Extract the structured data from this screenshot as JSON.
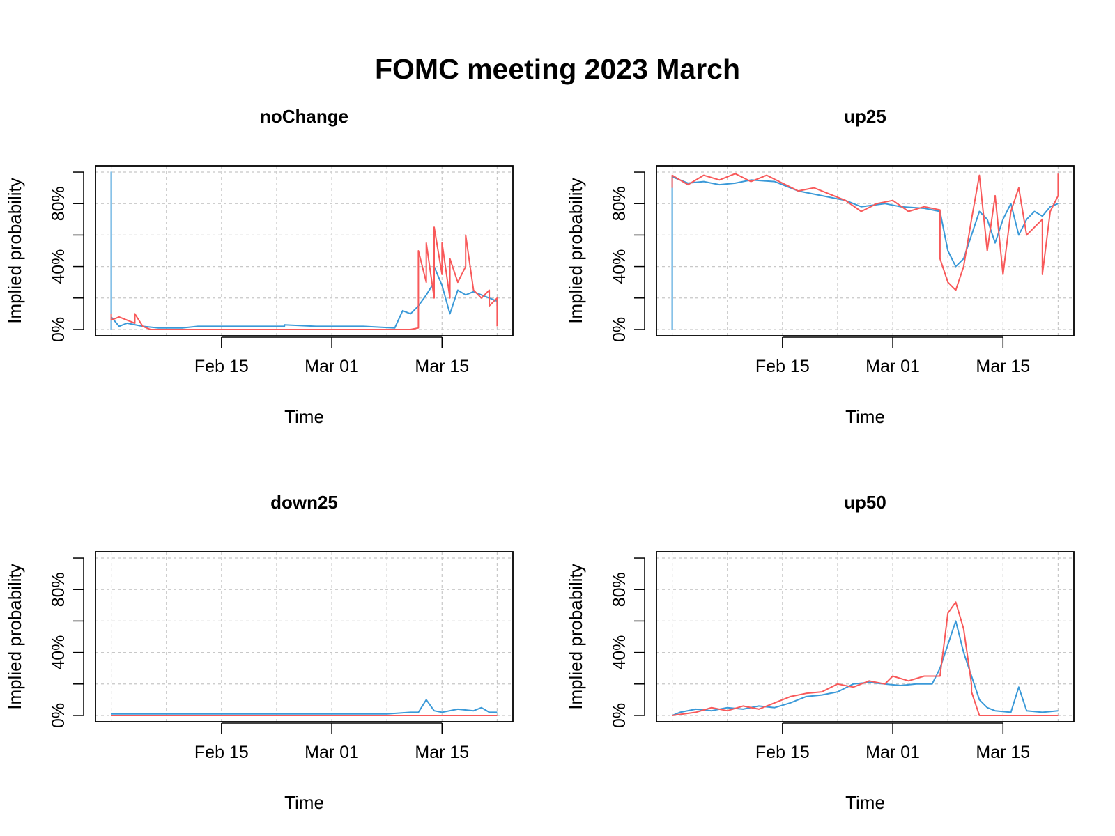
{
  "figure": {
    "title": "FOMC meeting 2023 March"
  },
  "colors": {
    "series_a": "#3a99d8",
    "series_b": "#f8595a",
    "grid": "#c8c8c8",
    "frame": "#000000"
  },
  "chart_data": [
    {
      "type": "line",
      "title": "noChange",
      "xlabel": "Time",
      "ylabel": "Implied probability",
      "x_type": "date",
      "xlim": [
        "2023-01-30",
        "2023-03-24"
      ],
      "ylim": [
        -0.04,
        1.04
      ],
      "x_tick_labels": [
        "Feb 15",
        "Mar 01",
        "Mar 15"
      ],
      "x_ticks": [
        "2023-02-15",
        "2023-03-01",
        "2023-03-15"
      ],
      "y_tick_labels": [
        "0%",
        "40%",
        "80%"
      ],
      "y_ticks": [
        0,
        0.2,
        0.4,
        0.6,
        0.8,
        1.0
      ],
      "grid": true,
      "series": [
        {
          "color": "#3a99d8",
          "points": [
            [
              "2023-02-01",
              0.0
            ],
            [
              "2023-02-01",
              1.0
            ],
            [
              "2023-02-01",
              0.08
            ],
            [
              "2023-02-02",
              0.02
            ],
            [
              "2023-02-03",
              0.04
            ],
            [
              "2023-02-05",
              0.02
            ],
            [
              "2023-02-07",
              0.01
            ],
            [
              "2023-02-10",
              0.01
            ],
            [
              "2023-02-12",
              0.02
            ],
            [
              "2023-02-20",
              0.02
            ],
            [
              "2023-02-23",
              0.02
            ],
            [
              "2023-02-23",
              0.03
            ],
            [
              "2023-02-27",
              0.02
            ],
            [
              "2023-03-05",
              0.02
            ],
            [
              "2023-03-09",
              0.01
            ],
            [
              "2023-03-10",
              0.12
            ],
            [
              "2023-03-11",
              0.1
            ],
            [
              "2023-03-12",
              0.15
            ],
            [
              "2023-03-13",
              0.22
            ],
            [
              "2023-03-14",
              0.3
            ],
            [
              "2023-03-14",
              0.4
            ],
            [
              "2023-03-15",
              0.28
            ],
            [
              "2023-03-16",
              0.1
            ],
            [
              "2023-03-17",
              0.25
            ],
            [
              "2023-03-18",
              0.22
            ],
            [
              "2023-03-19",
              0.24
            ],
            [
              "2023-03-20",
              0.22
            ],
            [
              "2023-03-21",
              0.2
            ],
            [
              "2023-03-22",
              0.18
            ],
            [
              "2023-03-22",
              0.15
            ]
          ]
        },
        {
          "color": "#f8595a",
          "points": [
            [
              "2023-02-01",
              0.1
            ],
            [
              "2023-02-01",
              0.06
            ],
            [
              "2023-02-02",
              0.08
            ],
            [
              "2023-02-04",
              0.04
            ],
            [
              "2023-02-04",
              0.1
            ],
            [
              "2023-02-05",
              0.02
            ],
            [
              "2023-02-06",
              0.0
            ],
            [
              "2023-02-20",
              0.0
            ],
            [
              "2023-03-11",
              0.0
            ],
            [
              "2023-03-12",
              0.01
            ],
            [
              "2023-03-12",
              0.4
            ],
            [
              "2023-03-12",
              0.5
            ],
            [
              "2023-03-13",
              0.3
            ],
            [
              "2023-03-13",
              0.55
            ],
            [
              "2023-03-14",
              0.2
            ],
            [
              "2023-03-14",
              0.65
            ],
            [
              "2023-03-15",
              0.35
            ],
            [
              "2023-03-15",
              0.55
            ],
            [
              "2023-03-16",
              0.2
            ],
            [
              "2023-03-16",
              0.45
            ],
            [
              "2023-03-17",
              0.3
            ],
            [
              "2023-03-18",
              0.4
            ],
            [
              "2023-03-18",
              0.6
            ],
            [
              "2023-03-19",
              0.25
            ],
            [
              "2023-03-20",
              0.2
            ],
            [
              "2023-03-21",
              0.25
            ],
            [
              "2023-03-21",
              0.15
            ],
            [
              "2023-03-22",
              0.2
            ],
            [
              "2023-03-22",
              0.02
            ]
          ]
        }
      ]
    },
    {
      "type": "line",
      "title": "up25",
      "xlabel": "Time",
      "ylabel": "Implied probability",
      "x_type": "date",
      "xlim": [
        "2023-01-30",
        "2023-03-24"
      ],
      "ylim": [
        -0.04,
        1.04
      ],
      "x_tick_labels": [
        "Feb 15",
        "Mar 01",
        "Mar 15"
      ],
      "x_ticks": [
        "2023-02-15",
        "2023-03-01",
        "2023-03-15"
      ],
      "y_tick_labels": [
        "0%",
        "40%",
        "80%"
      ],
      "y_ticks": [
        0,
        0.2,
        0.4,
        0.6,
        0.8,
        1.0
      ],
      "grid": true,
      "series": [
        {
          "color": "#3a99d8",
          "points": [
            [
              "2023-02-01",
              0.0
            ],
            [
              "2023-02-01",
              0.97
            ],
            [
              "2023-02-02",
              0.95
            ],
            [
              "2023-02-03",
              0.93
            ],
            [
              "2023-02-05",
              0.94
            ],
            [
              "2023-02-07",
              0.92
            ],
            [
              "2023-02-09",
              0.93
            ],
            [
              "2023-02-11",
              0.95
            ],
            [
              "2023-02-14",
              0.94
            ],
            [
              "2023-02-17",
              0.88
            ],
            [
              "2023-02-20",
              0.85
            ],
            [
              "2023-02-23",
              0.82
            ],
            [
              "2023-02-25",
              0.78
            ],
            [
              "2023-02-28",
              0.8
            ],
            [
              "2023-03-02",
              0.78
            ],
            [
              "2023-03-05",
              0.77
            ],
            [
              "2023-03-07",
              0.75
            ],
            [
              "2023-03-08",
              0.5
            ],
            [
              "2023-03-09",
              0.4
            ],
            [
              "2023-03-10",
              0.45
            ],
            [
              "2023-03-11",
              0.6
            ],
            [
              "2023-03-12",
              0.75
            ],
            [
              "2023-03-13",
              0.7
            ],
            [
              "2023-03-14",
              0.55
            ],
            [
              "2023-03-15",
              0.7
            ],
            [
              "2023-03-16",
              0.8
            ],
            [
              "2023-03-17",
              0.6
            ],
            [
              "2023-03-18",
              0.7
            ],
            [
              "2023-03-19",
              0.75
            ],
            [
              "2023-03-20",
              0.72
            ],
            [
              "2023-03-21",
              0.78
            ],
            [
              "2023-03-22",
              0.8
            ]
          ]
        },
        {
          "color": "#f8595a",
          "points": [
            [
              "2023-02-01",
              0.9
            ],
            [
              "2023-02-01",
              0.98
            ],
            [
              "2023-02-03",
              0.92
            ],
            [
              "2023-02-05",
              0.98
            ],
            [
              "2023-02-07",
              0.95
            ],
            [
              "2023-02-09",
              0.99
            ],
            [
              "2023-02-11",
              0.94
            ],
            [
              "2023-02-13",
              0.98
            ],
            [
              "2023-02-15",
              0.93
            ],
            [
              "2023-02-17",
              0.88
            ],
            [
              "2023-02-19",
              0.9
            ],
            [
              "2023-02-21",
              0.86
            ],
            [
              "2023-02-23",
              0.82
            ],
            [
              "2023-02-25",
              0.75
            ],
            [
              "2023-02-27",
              0.8
            ],
            [
              "2023-03-01",
              0.82
            ],
            [
              "2023-03-03",
              0.75
            ],
            [
              "2023-03-05",
              0.78
            ],
            [
              "2023-03-07",
              0.76
            ],
            [
              "2023-03-07",
              0.45
            ],
            [
              "2023-03-08",
              0.3
            ],
            [
              "2023-03-09",
              0.25
            ],
            [
              "2023-03-10",
              0.4
            ],
            [
              "2023-03-11",
              0.7
            ],
            [
              "2023-03-12",
              0.98
            ],
            [
              "2023-03-13",
              0.5
            ],
            [
              "2023-03-14",
              0.85
            ],
            [
              "2023-03-15",
              0.35
            ],
            [
              "2023-03-16",
              0.75
            ],
            [
              "2023-03-17",
              0.9
            ],
            [
              "2023-03-18",
              0.6
            ],
            [
              "2023-03-20",
              0.7
            ],
            [
              "2023-03-20",
              0.35
            ],
            [
              "2023-03-21",
              0.75
            ],
            [
              "2023-03-22",
              0.85
            ],
            [
              "2023-03-22",
              0.99
            ]
          ]
        }
      ]
    },
    {
      "type": "line",
      "title": "down25",
      "xlabel": "Time",
      "ylabel": "Implied probability",
      "x_type": "date",
      "xlim": [
        "2023-01-30",
        "2023-03-24"
      ],
      "ylim": [
        -0.04,
        1.04
      ],
      "x_tick_labels": [
        "Feb 15",
        "Mar 01",
        "Mar 15"
      ],
      "x_ticks": [
        "2023-02-15",
        "2023-03-01",
        "2023-03-15"
      ],
      "y_tick_labels": [
        "0%",
        "40%",
        "80%"
      ],
      "y_ticks": [
        0,
        0.2,
        0.4,
        0.6,
        0.8,
        1.0
      ],
      "grid": true,
      "series": [
        {
          "color": "#3a99d8",
          "points": [
            [
              "2023-02-01",
              0.01
            ],
            [
              "2023-02-10",
              0.01
            ],
            [
              "2023-02-25",
              0.01
            ],
            [
              "2023-03-08",
              0.01
            ],
            [
              "2023-03-11",
              0.02
            ],
            [
              "2023-03-12",
              0.02
            ],
            [
              "2023-03-13",
              0.1
            ],
            [
              "2023-03-14",
              0.03
            ],
            [
              "2023-03-15",
              0.02
            ],
            [
              "2023-03-17",
              0.04
            ],
            [
              "2023-03-19",
              0.03
            ],
            [
              "2023-03-20",
              0.05
            ],
            [
              "2023-03-21",
              0.02
            ],
            [
              "2023-03-22",
              0.02
            ]
          ]
        },
        {
          "color": "#f8595a",
          "points": [
            [
              "2023-02-01",
              0.0
            ],
            [
              "2023-03-22",
              0.0
            ]
          ]
        }
      ]
    },
    {
      "type": "line",
      "title": "up50",
      "xlabel": "Time",
      "ylabel": "Implied probability",
      "x_type": "date",
      "xlim": [
        "2023-01-30",
        "2023-03-24"
      ],
      "ylim": [
        -0.04,
        1.04
      ],
      "x_tick_labels": [
        "Feb 15",
        "Mar 01",
        "Mar 15"
      ],
      "x_ticks": [
        "2023-02-15",
        "2023-03-01",
        "2023-03-15"
      ],
      "y_tick_labels": [
        "0%",
        "40%",
        "80%"
      ],
      "y_ticks": [
        0,
        0.2,
        0.4,
        0.6,
        0.8,
        1.0
      ],
      "grid": true,
      "series": [
        {
          "color": "#3a99d8",
          "points": [
            [
              "2023-02-01",
              0.0
            ],
            [
              "2023-02-02",
              0.02
            ],
            [
              "2023-02-04",
              0.04
            ],
            [
              "2023-02-06",
              0.03
            ],
            [
              "2023-02-08",
              0.05
            ],
            [
              "2023-02-10",
              0.04
            ],
            [
              "2023-02-12",
              0.06
            ],
            [
              "2023-02-14",
              0.05
            ],
            [
              "2023-02-16",
              0.08
            ],
            [
              "2023-02-18",
              0.12
            ],
            [
              "2023-02-20",
              0.13
            ],
            [
              "2023-02-22",
              0.15
            ],
            [
              "2023-02-24",
              0.2
            ],
            [
              "2023-02-26",
              0.21
            ],
            [
              "2023-02-28",
              0.2
            ],
            [
              "2023-03-02",
              0.19
            ],
            [
              "2023-03-04",
              0.2
            ],
            [
              "2023-03-06",
              0.2
            ],
            [
              "2023-03-07",
              0.3
            ],
            [
              "2023-03-08",
              0.45
            ],
            [
              "2023-03-09",
              0.6
            ],
            [
              "2023-03-10",
              0.4
            ],
            [
              "2023-03-11",
              0.25
            ],
            [
              "2023-03-12",
              0.1
            ],
            [
              "2023-03-13",
              0.05
            ],
            [
              "2023-03-14",
              0.03
            ],
            [
              "2023-03-16",
              0.02
            ],
            [
              "2023-03-17",
              0.18
            ],
            [
              "2023-03-18",
              0.03
            ],
            [
              "2023-03-20",
              0.02
            ],
            [
              "2023-03-22",
              0.03
            ]
          ]
        },
        {
          "color": "#f8595a",
          "points": [
            [
              "2023-02-01",
              0.0
            ],
            [
              "2023-02-04",
              0.02
            ],
            [
              "2023-02-06",
              0.05
            ],
            [
              "2023-02-08",
              0.03
            ],
            [
              "2023-02-10",
              0.06
            ],
            [
              "2023-02-12",
              0.04
            ],
            [
              "2023-02-14",
              0.08
            ],
            [
              "2023-02-16",
              0.12
            ],
            [
              "2023-02-18",
              0.14
            ],
            [
              "2023-02-20",
              0.15
            ],
            [
              "2023-02-22",
              0.2
            ],
            [
              "2023-02-24",
              0.18
            ],
            [
              "2023-02-26",
              0.22
            ],
            [
              "2023-02-28",
              0.2
            ],
            [
              "2023-03-01",
              0.25
            ],
            [
              "2023-03-03",
              0.22
            ],
            [
              "2023-03-05",
              0.25
            ],
            [
              "2023-03-07",
              0.25
            ],
            [
              "2023-03-08",
              0.65
            ],
            [
              "2023-03-09",
              0.72
            ],
            [
              "2023-03-10",
              0.55
            ],
            [
              "2023-03-11",
              0.2
            ],
            [
              "2023-03-11",
              0.15
            ],
            [
              "2023-03-12",
              0.0
            ],
            [
              "2023-03-22",
              0.0
            ]
          ]
        }
      ]
    }
  ]
}
